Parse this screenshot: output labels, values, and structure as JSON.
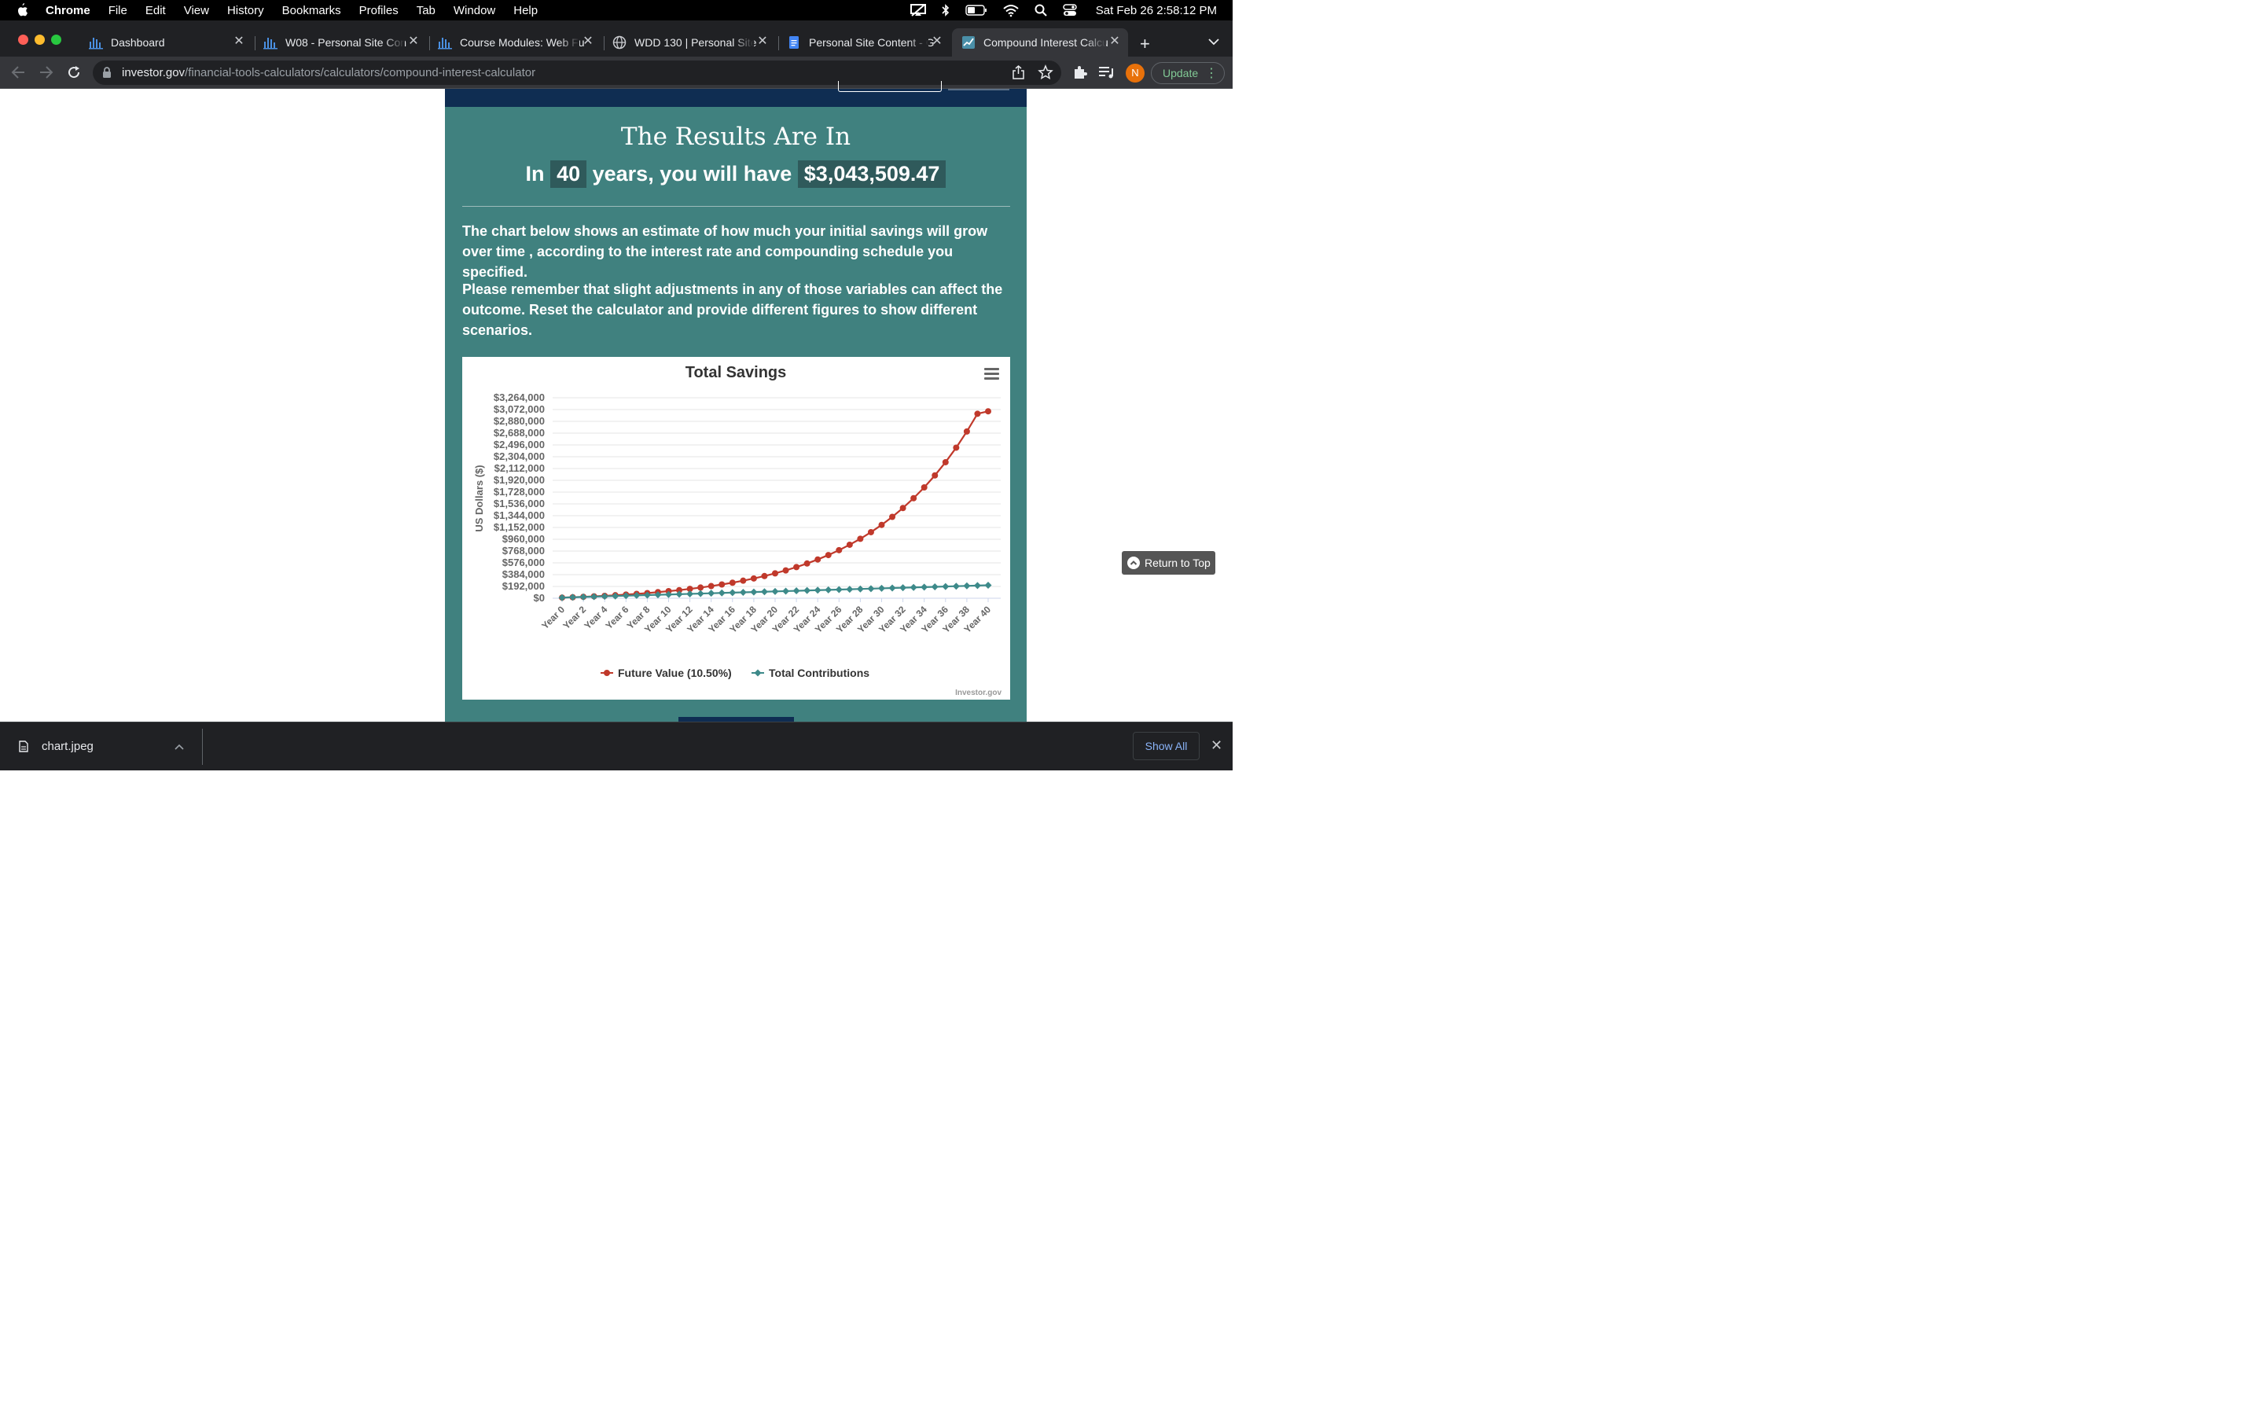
{
  "menubar": {
    "app": "Chrome",
    "items": [
      "File",
      "Edit",
      "View",
      "History",
      "Bookmarks",
      "Profiles",
      "Tab",
      "Window",
      "Help"
    ],
    "clock": "Sat Feb 26  2:58:12 PM"
  },
  "tabs": [
    {
      "title": "Dashboard",
      "icon": "canvas-bars-icon"
    },
    {
      "title": "W08 - Personal Site Con",
      "icon": "canvas-bars-icon"
    },
    {
      "title": "Course Modules: Web Fu",
      "icon": "canvas-bars-icon"
    },
    {
      "title": "WDD 130 | Personal Site",
      "icon": "globe-icon"
    },
    {
      "title": "Personal Site Content - G",
      "icon": "google-docs-icon"
    },
    {
      "title": "Compound Interest Calcu",
      "icon": "chart-favicon-icon",
      "active": true
    }
  ],
  "toolbar": {
    "url_host": "investor.gov",
    "url_path": "/financial-tools-calculators/calculators/compound-interest-calculator",
    "avatar_letter": "N",
    "update_label": "Update"
  },
  "results": {
    "title": "The Results Are In",
    "line_pre": "In",
    "years": "40",
    "line_mid": "years, you will have",
    "amount": "$3,043,509.47",
    "para1": "The chart below shows an estimate of how much your initial savings will grow over time , according to the interest rate and compounding schedule you specified.",
    "para2": "Please remember that slight adjustments in any of those variables can affect the outcome. Reset the calculator and provide different figures to show different scenarios."
  },
  "return_to_top": "Return to Top",
  "chart_data": {
    "type": "line",
    "title": "Total Savings",
    "ylabel": "US Dollars ($)",
    "xlabel": "",
    "ylim": [
      0,
      3264000
    ],
    "y_ticks": [
      "$0",
      "$192,000",
      "$384,000",
      "$576,000",
      "$768,000",
      "$960,000",
      "$1,152,000",
      "$1,344,000",
      "$1,536,000",
      "$1,728,000",
      "$1,920,000",
      "$2,112,000",
      "$2,304,000",
      "$2,496,000",
      "$2,688,000",
      "$2,880,000",
      "$3,072,000",
      "$3,264,000"
    ],
    "y_tick_values": [
      0,
      192000,
      384000,
      576000,
      768000,
      960000,
      1152000,
      1344000,
      1536000,
      1728000,
      1920000,
      2112000,
      2304000,
      2496000,
      2688000,
      2880000,
      3072000,
      3264000
    ],
    "x_tick_labels": [
      "Year 0",
      "Year 2",
      "Year 4",
      "Year 6",
      "Year 8",
      "Year 10",
      "Year 12",
      "Year 14",
      "Year 16",
      "Year 18",
      "Year 20",
      "Year 22",
      "Year 24",
      "Year 26",
      "Year 28",
      "Year 30",
      "Year 32",
      "Year 34",
      "Year 36",
      "Year 38",
      "Year 40"
    ],
    "x": [
      0,
      1,
      2,
      3,
      4,
      5,
      6,
      7,
      8,
      9,
      10,
      11,
      12,
      13,
      14,
      15,
      16,
      17,
      18,
      19,
      20,
      21,
      22,
      23,
      24,
      25,
      26,
      27,
      28,
      29,
      30,
      31,
      32,
      33,
      34,
      35,
      36,
      37,
      38,
      39,
      40
    ],
    "legend_position": "bottom-center",
    "series": [
      {
        "name": "Future Value (10.50%)",
        "color": "#c0392b",
        "marker": "circle",
        "values": [
          10000,
          16000,
          23000,
          31000,
          39000,
          49000,
          59000,
          71000,
          84000,
          99000,
          115000,
          132000,
          152000,
          174000,
          198000,
          224000,
          253000,
          286000,
          322000,
          361000,
          405000,
          453000,
          507000,
          566000,
          631000,
          703000,
          783000,
          871000,
          968000,
          1076000,
          1194000,
          1325000,
          1469000,
          1629000,
          1805000,
          2000000,
          2215000,
          2452000,
          2715000,
          3004000,
          3043509
        ]
      },
      {
        "name": "Total Contributions",
        "color": "#3d8a8a",
        "marker": "diamond",
        "values": [
          10000,
          16000,
          21000,
          26000,
          31000,
          36000,
          41000,
          46000,
          51000,
          56000,
          61000,
          66000,
          71000,
          76000,
          81000,
          86000,
          91000,
          96000,
          101000,
          106000,
          111000,
          116000,
          121000,
          126000,
          131000,
          136000,
          141000,
          146000,
          151000,
          156000,
          161000,
          166000,
          171000,
          176000,
          181000,
          186000,
          191000,
          196000,
          201000,
          206000,
          211000
        ]
      }
    ],
    "credits": "Investor.gov"
  },
  "download_bar": {
    "file_name": "chart.jpeg",
    "show_all": "Show All"
  }
}
